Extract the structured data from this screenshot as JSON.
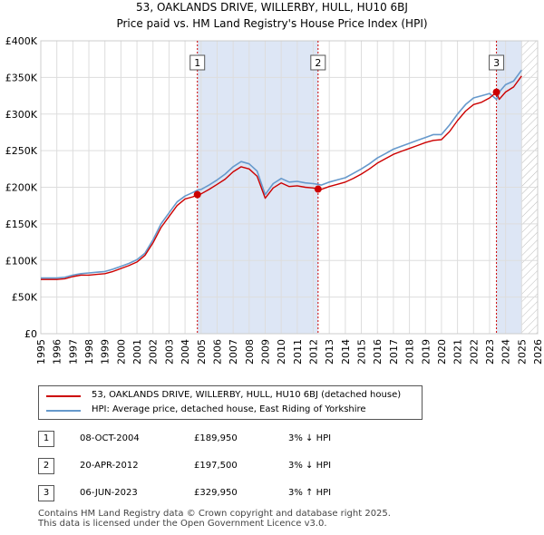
{
  "title_line1": "53, OAKLANDS DRIVE, WILLERBY, HULL, HU10 6BJ",
  "title_line2": "Price paid vs. HM Land Registry's House Price Index (HPI)",
  "colors": {
    "property": "#cc0000",
    "hpi": "#6699cc",
    "shade": "#dde6f5",
    "marker_line": "#cc0000"
  },
  "legend": {
    "property_label": "53, OAKLANDS DRIVE, WILLERBY, HULL, HU10 6BJ (detached house)",
    "hpi_label": "HPI: Average price, detached house, East Riding of Yorkshire"
  },
  "transactions": [
    {
      "num": "1",
      "date": "08-OCT-2004",
      "price": "£189,950",
      "hpi_diff": "3% ↓ HPI"
    },
    {
      "num": "2",
      "date": "20-APR-2012",
      "price": "£197,500",
      "hpi_diff": "3% ↓ HPI"
    },
    {
      "num": "3",
      "date": "06-JUN-2023",
      "price": "£329,950",
      "hpi_diff": "3% ↑ HPI"
    }
  ],
  "footer": {
    "line1": "Contains HM Land Registry data © Crown copyright and database right 2025.",
    "line2": "This data is licensed under the Open Government Licence v3.0."
  },
  "chart_data": {
    "type": "line",
    "title": "53, OAKLANDS DRIVE, WILLERBY, HULL, HU10 6BJ",
    "subtitle": "Price paid vs. HM Land Registry's House Price Index (HPI)",
    "xlim": [
      1995,
      2026
    ],
    "ylim": [
      0,
      400000
    ],
    "x_ticks": [
      1995,
      1996,
      1997,
      1998,
      1999,
      2000,
      2001,
      2002,
      2003,
      2004,
      2005,
      2006,
      2007,
      2008,
      2009,
      2010,
      2011,
      2012,
      2013,
      2014,
      2015,
      2016,
      2017,
      2018,
      2019,
      2020,
      2021,
      2022,
      2023,
      2024,
      2025,
      2026
    ],
    "y_ticks": [
      {
        "value": 0,
        "label": "£0"
      },
      {
        "value": 50000,
        "label": "£50K"
      },
      {
        "value": 100000,
        "label": "£100K"
      },
      {
        "value": 150000,
        "label": "£150K"
      },
      {
        "value": 200000,
        "label": "£200K"
      },
      {
        "value": 250000,
        "label": "£250K"
      },
      {
        "value": 300000,
        "label": "£300K"
      },
      {
        "value": 350000,
        "label": "£350K"
      },
      {
        "value": 400000,
        "label": "£400K"
      }
    ],
    "grid": true,
    "shaded_ranges": [
      [
        2004.77,
        2012.3
      ],
      [
        2023.43,
        2025.0
      ]
    ],
    "future_hatch_from": 2025.0,
    "sales": [
      {
        "label": "1",
        "x": 2004.77,
        "y": 189950
      },
      {
        "label": "2",
        "x": 2012.3,
        "y": 197500
      },
      {
        "label": "3",
        "x": 2023.43,
        "y": 329950
      }
    ],
    "series": [
      {
        "name": "HPI: Average price, detached house, East Riding of Yorkshire",
        "x": [
          1995,
          1995.5,
          1996,
          1996.5,
          1997,
          1997.5,
          1998,
          1998.5,
          1999,
          1999.5,
          2000,
          2000.5,
          2001,
          2001.5,
          2002,
          2002.5,
          2003,
          2003.5,
          2004,
          2004.5,
          2004.77,
          2005,
          2005.5,
          2006,
          2006.5,
          2007,
          2007.5,
          2008,
          2008.5,
          2009,
          2009.5,
          2010,
          2010.5,
          2011,
          2011.5,
          2012,
          2012.3,
          2012.5,
          2013,
          2013.5,
          2014,
          2014.5,
          2015,
          2015.5,
          2016,
          2016.5,
          2017,
          2017.5,
          2018,
          2018.5,
          2019,
          2019.5,
          2020,
          2020.5,
          2021,
          2021.5,
          2022,
          2022.5,
          2023,
          2023.43,
          2023.6,
          2024,
          2024.5,
          2025.0
        ],
        "values": [
          76000,
          76000,
          76000,
          77000,
          80000,
          82000,
          83000,
          84000,
          85000,
          88000,
          92000,
          96000,
          101000,
          110000,
          128000,
          150000,
          165000,
          180000,
          188000,
          193000,
          196000,
          197000,
          203000,
          210000,
          218000,
          228000,
          235000,
          232000,
          222000,
          190000,
          205000,
          212000,
          207000,
          208000,
          206000,
          205000,
          204000,
          203000,
          207000,
          210000,
          213000,
          219000,
          225000,
          232000,
          240000,
          246000,
          252000,
          256000,
          260000,
          264000,
          268000,
          272000,
          272000,
          285000,
          300000,
          313000,
          322000,
          325000,
          328000,
          320000,
          330000,
          340000,
          345000,
          360000
        ]
      },
      {
        "name": "53, OAKLANDS DRIVE, WILLERBY, HULL, HU10 6BJ (detached house)",
        "x": [
          1995,
          1995.5,
          1996,
          1996.5,
          1997,
          1997.5,
          1998,
          1998.5,
          1999,
          1999.5,
          2000,
          2000.5,
          2001,
          2001.5,
          2002,
          2002.5,
          2003,
          2003.5,
          2004,
          2004.5,
          2004.77,
          2005,
          2005.5,
          2006,
          2006.5,
          2007,
          2007.5,
          2008,
          2008.5,
          2009,
          2009.5,
          2010,
          2010.5,
          2011,
          2011.5,
          2012,
          2012.3,
          2012.5,
          2013,
          2013.5,
          2014,
          2014.5,
          2015,
          2015.5,
          2016,
          2016.5,
          2017,
          2017.5,
          2018,
          2018.5,
          2019,
          2019.5,
          2020,
          2020.5,
          2021,
          2021.5,
          2022,
          2022.5,
          2023,
          2023.43,
          2023.6,
          2024,
          2024.5,
          2025.0
        ],
        "values": [
          74000,
          74000,
          74000,
          75000,
          78000,
          80000,
          80000,
          81000,
          82000,
          85000,
          89000,
          93000,
          98000,
          107000,
          124000,
          145000,
          160000,
          175000,
          184000,
          187000,
          189950,
          191000,
          197000,
          204000,
          211000,
          221000,
          228000,
          225000,
          215000,
          185000,
          199000,
          206000,
          201000,
          202000,
          200000,
          199000,
          197500,
          197000,
          201000,
          204000,
          207000,
          212000,
          218000,
          225000,
          233000,
          239000,
          245000,
          249000,
          253000,
          257000,
          261000,
          264000,
          265000,
          276000,
          291000,
          304000,
          313000,
          316000,
          322000,
          329950,
          320000,
          330000,
          337000,
          352000
        ]
      }
    ]
  }
}
